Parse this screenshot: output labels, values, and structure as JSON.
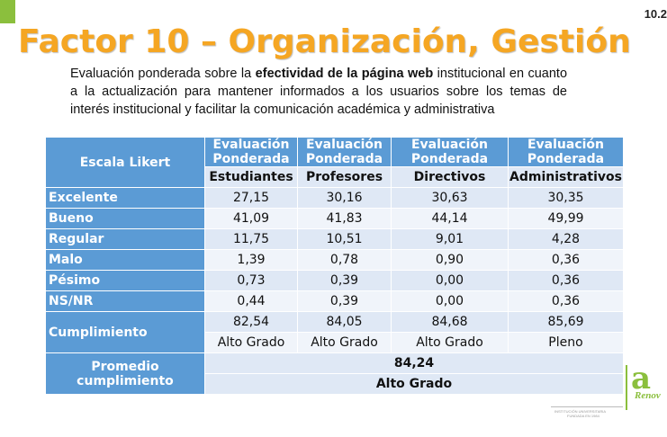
{
  "slide_number": "10.2",
  "title": "Factor 10 – Organización, Gestión",
  "description": {
    "part1": "Evaluación ponderada sobre la ",
    "bold": "efectividad de la página web",
    "part2": " institucional en cuanto a la actualización para mantener informados a los usuarios sobre los temas de interés institucional y facilitar la comunicación académica y administrativa"
  },
  "table": {
    "corner_label": "Escala Likert",
    "eval_header_line1": "Evaluación",
    "eval_header_line2": "Ponderada",
    "columns": [
      "Estudiantes",
      "Profesores",
      "Directivos",
      "Administrativos"
    ],
    "rows": [
      {
        "label": "Excelente",
        "values": [
          "27,15",
          "30,16",
          "30,63",
          "30,35"
        ]
      },
      {
        "label": "Bueno",
        "values": [
          "41,09",
          "41,83",
          "44,14",
          "49,99"
        ]
      },
      {
        "label": "Regular",
        "values": [
          "11,75",
          "10,51",
          "9,01",
          "4,28"
        ]
      },
      {
        "label": "Malo",
        "values": [
          "1,39",
          "0,78",
          "0,90",
          "0,36"
        ]
      },
      {
        "label": "Pésimo",
        "values": [
          "0,73",
          "0,39",
          "0,00",
          "0,36"
        ]
      },
      {
        "label": "NS/NR",
        "values": [
          "0,44",
          "0,39",
          "0,00",
          "0,36"
        ]
      }
    ],
    "cumplimiento": {
      "label": "Cumplimiento",
      "values": [
        "82,54",
        "84,05",
        "84,68",
        "85,69"
      ],
      "grades": [
        "Alto Grado",
        "Alto Grado",
        "Alto Grado",
        "Pleno"
      ]
    },
    "promedio": {
      "label_line1": "Promedio",
      "label_line2": "cumplimiento",
      "value": "84,24",
      "grade": "Alto Grado"
    }
  },
  "logo": {
    "letter": "a",
    "text": "Renov",
    "subtext": "ACREDITACIÓN"
  },
  "footer": {
    "line1": "INSTITUCIÓN UNIVERSITARIA",
    "line2": "FUNDADA EN 1984"
  },
  "colors": {
    "title": "#f5a623",
    "header_blue": "#5b9bd5",
    "row_light": "#dfe8f5",
    "row_lighter": "#f0f4fa",
    "logo_green": "#8bbf3d"
  }
}
